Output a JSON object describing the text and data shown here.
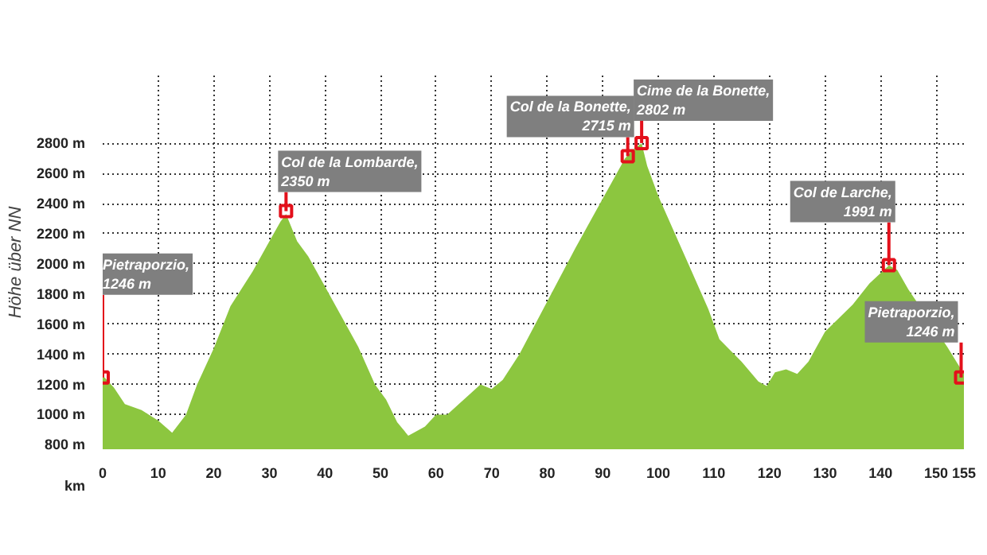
{
  "chart_data": {
    "type": "area",
    "ylabel": "Höhe über NN",
    "xlabel": "km",
    "series": [
      {
        "color": "#8cc63f",
        "x": [
          0,
          2,
          4,
          7,
          10,
          12.5,
          15,
          17,
          20,
          23,
          27,
          30,
          32,
          33,
          35,
          37,
          40,
          43,
          46,
          49,
          51,
          53,
          55,
          58,
          60,
          62,
          65,
          68,
          70,
          72,
          75,
          80,
          85,
          88,
          91,
          94,
          95.5,
          97,
          98,
          100,
          103,
          106,
          109,
          111,
          115,
          118,
          119.5,
          121,
          123,
          125,
          127,
          130,
          135,
          138,
          141.5,
          143,
          145,
          152,
          155
        ],
        "values": [
          1260,
          1180,
          1070,
          1030,
          960,
          880,
          1000,
          1200,
          1440,
          1720,
          1950,
          2150,
          2280,
          2330,
          2150,
          2050,
          1850,
          1650,
          1450,
          1200,
          1100,
          950,
          860,
          920,
          1000,
          1000,
          1100,
          1200,
          1170,
          1230,
          1400,
          1750,
          2100,
          2300,
          2500,
          2700,
          2760,
          2800,
          2650,
          2450,
          2200,
          1950,
          1700,
          1500,
          1350,
          1220,
          1190,
          1280,
          1300,
          1270,
          1350,
          1550,
          1730,
          1870,
          1990,
          1960,
          1830,
          1450,
          1270
        ]
      }
    ],
    "xlim": [
      0,
      155
    ],
    "ylim": [
      770,
      3250
    ],
    "xticks": [
      0,
      10,
      20,
      30,
      40,
      50,
      60,
      70,
      80,
      90,
      100,
      110,
      120,
      130,
      140,
      150,
      155
    ],
    "yticks": [
      {
        "value": 800,
        "label": "800 m"
      },
      {
        "value": 1000,
        "label": "1000 m"
      },
      {
        "value": 1200,
        "label": "1200 m"
      },
      {
        "value": 1400,
        "label": "1400 m"
      },
      {
        "value": 1600,
        "label": "1600 m"
      },
      {
        "value": 1800,
        "label": "1800 m"
      },
      {
        "value": 2000,
        "label": "2000 m"
      },
      {
        "value": 2200,
        "label": "2200 m"
      },
      {
        "value": 2400,
        "label": "2400 m"
      },
      {
        "value": 2600,
        "label": "2600 m"
      },
      {
        "value": 2800,
        "label": "2800 m"
      }
    ],
    "grid": true,
    "annotations": [
      {
        "text": "Pietraporzio,\n1246 m",
        "x": 0,
        "y": 1246
      },
      {
        "text": "Col de la Lombarde,\n2350 m",
        "x": 33,
        "y": 2350
      },
      {
        "text": "Col de la Bonette,\n2715 m",
        "x": 94.5,
        "y": 2715
      },
      {
        "text": "Cime de la Bonette,\n2802 m",
        "x": 97,
        "y": 2802
      },
      {
        "text": "Col de Larche,\n1991 m",
        "x": 141.5,
        "y": 1991
      },
      {
        "text": "Pietraporzio,\n1246 m",
        "x": 154.5,
        "y": 1246
      }
    ]
  }
}
